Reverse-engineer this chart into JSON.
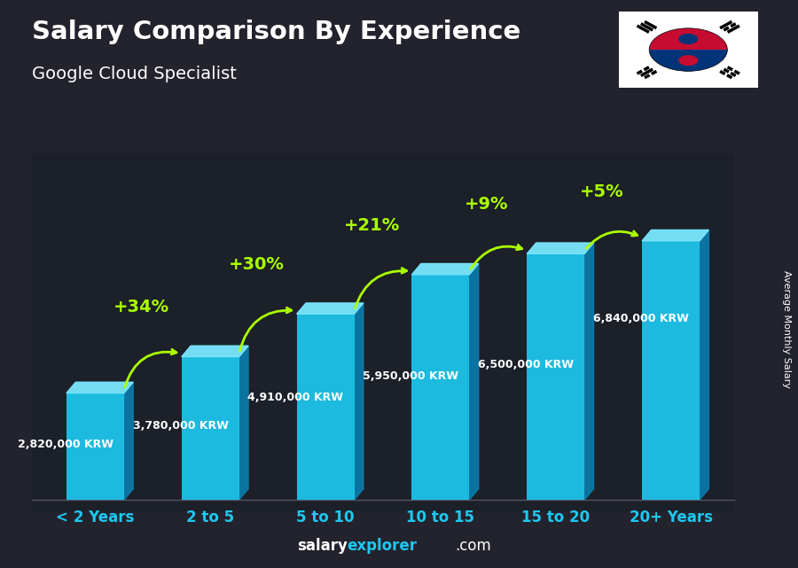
{
  "title": "Salary Comparison By Experience",
  "subtitle": "Google Cloud Specialist",
  "categories": [
    "< 2 Years",
    "2 to 5",
    "5 to 10",
    "10 to 15",
    "15 to 20",
    "20+ Years"
  ],
  "values": [
    2820000,
    3780000,
    4910000,
    5950000,
    6500000,
    6840000
  ],
  "labels": [
    "2,820,000 KRW",
    "3,780,000 KRW",
    "4,910,000 KRW",
    "5,950,000 KRW",
    "6,500,000 KRW",
    "6,840,000 KRW"
  ],
  "pct_changes": [
    "+34%",
    "+30%",
    "+21%",
    "+9%",
    "+5%"
  ],
  "bar_color_main": "#1EC8F0",
  "bar_color_side": "#0A7BAA",
  "bar_color_top": "#7AE8FF",
  "title_color": "#FFFFFF",
  "subtitle_color": "#FFFFFF",
  "label_color": "#FFFFFF",
  "pct_color": "#AAFF00",
  "xlabel_color": "#1EC8F0",
  "bg_color": "#2a2a3a",
  "footer_salary_color": "#FFFFFF",
  "footer_explorer_color": "#1EC8F0",
  "footer_com_color": "#FFFFFF",
  "ylabel_text": "Average Monthly Salary",
  "ylim": [
    0,
    9000000
  ],
  "label_offsets": [
    0.52,
    0.52,
    0.55,
    0.55,
    0.55,
    0.7
  ],
  "arc_rads": [
    -0.45,
    -0.42,
    -0.4,
    -0.4,
    -0.38
  ]
}
